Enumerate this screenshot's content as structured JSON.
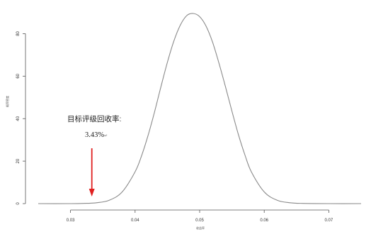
{
  "chart_data": {
    "type": "line",
    "title": "",
    "xlabel": "收益率",
    "ylabel": "概率密度",
    "xlim": [
      0.025,
      0.075
    ],
    "ylim": [
      0,
      90
    ],
    "x_ticks": [
      0.03,
      0.04,
      0.05,
      0.06,
      0.07
    ],
    "x_tick_labels": [
      "0.03",
      "0.04",
      "0.05",
      "0.06",
      "0.07"
    ],
    "y_ticks": [
      0,
      20,
      40,
      60,
      80
    ],
    "y_tick_labels": [
      "0",
      "20",
      "40",
      "60",
      "80"
    ],
    "grid": false,
    "series": [
      {
        "color": "#8a8a8a",
        "x": [
          0.025,
          0.03,
          0.032,
          0.034,
          0.036,
          0.038,
          0.04,
          0.041,
          0.042,
          0.043,
          0.044,
          0.045,
          0.046,
          0.047,
          0.048,
          0.049,
          0.05,
          0.051,
          0.052,
          0.053,
          0.054,
          0.055,
          0.056,
          0.057,
          0.058,
          0.06,
          0.062,
          0.064,
          0.066,
          0.07,
          0.075
        ],
        "y": [
          0,
          0,
          0.1,
          0.4,
          1.6,
          5.5,
          15,
          22.5,
          32,
          43,
          55,
          66.5,
          76.5,
          84,
          88.5,
          89.5,
          88,
          83.5,
          76,
          66,
          55,
          43.5,
          32.5,
          23,
          15,
          5.5,
          1.6,
          0.4,
          0.1,
          0,
          0
        ]
      }
    ],
    "annotation": {
      "title": "目标评级回收率:",
      "value": "3.43%",
      "arrow_x": 0.0333,
      "arrow_color": "#e02020"
    }
  }
}
